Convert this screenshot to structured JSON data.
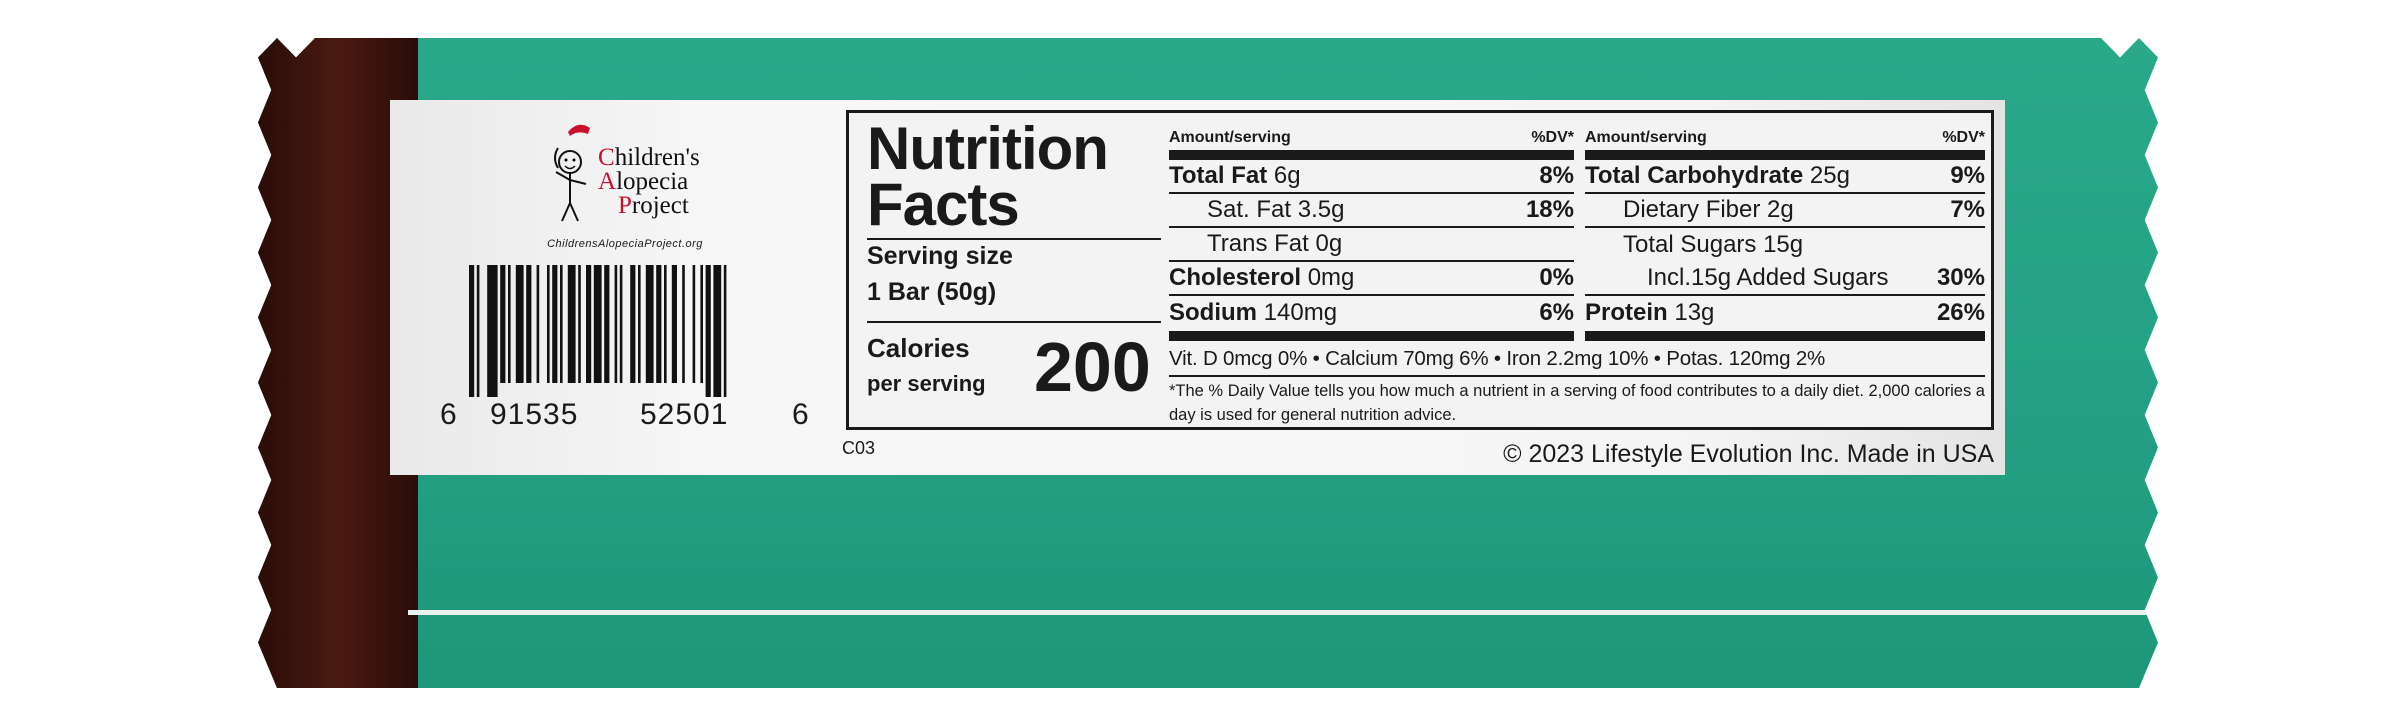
{
  "colors": {
    "wrapper_teal": "#23a083",
    "wrapper_brown": "#3a130c",
    "logo_red": "#c8102e"
  },
  "logo": {
    "line1_initial": "C",
    "line1_rest": "hildren's",
    "line2_initial": "A",
    "line2_rest": "lopecia",
    "line3_initial": "P",
    "line3_rest": "roject",
    "url": "ChildrensAlopeciaProject.org"
  },
  "barcode": {
    "digit_left": "6",
    "group1": "91535",
    "group2": "52501",
    "digit_right": "6"
  },
  "nutrition": {
    "title_line1": "Nutrition",
    "title_line2": "Facts",
    "serving_label": "Serving size",
    "serving_value": "1 Bar (50g)",
    "calories_label": "Calories",
    "calories_sub": "per serving",
    "calories": "200",
    "header_amount": "Amount/serving",
    "header_dv": "%DV*",
    "left_rows": [
      {
        "name": "Total Fat",
        "amount": "6g",
        "dv": "8%",
        "bold": true
      },
      {
        "name": "Sat. Fat",
        "amount": "3.5g",
        "dv": "18%",
        "bold": false
      },
      {
        "name": "Trans Fat",
        "amount": "0g",
        "dv": "",
        "bold": false
      },
      {
        "name": "Cholesterol",
        "amount": "0mg",
        "dv": "0%",
        "bold": true
      },
      {
        "name": "Sodium",
        "amount": "140mg",
        "dv": "6%",
        "bold": true
      }
    ],
    "right_rows": [
      {
        "name": "Total Carbohydrate",
        "amount": "25g",
        "dv": "9%",
        "bold": true
      },
      {
        "name": "Dietary Fiber",
        "amount": "2g",
        "dv": "7%",
        "bold": false
      },
      {
        "name": "Total Sugars",
        "amount": "15g",
        "dv": "",
        "bold": false
      },
      {
        "name": "Incl.15g Added Sugars",
        "amount": "",
        "dv": "30%",
        "bold": false
      },
      {
        "name": "Protein",
        "amount": "13g",
        "dv": "26%",
        "bold": true
      }
    ],
    "vitamins": "Vit. D 0mcg 0% • Calcium 70mg 6% • Iron 2.2mg 10% • Potas. 120mg 2%",
    "footnote": "*The % Daily Value tells you how much a nutrient in a serving of food contributes to a daily diet. 2,000 calories a day is used for general nutrition advice."
  },
  "code": "C03",
  "copyright": "© 2023 Lifestyle Evolution Inc. Made in USA"
}
